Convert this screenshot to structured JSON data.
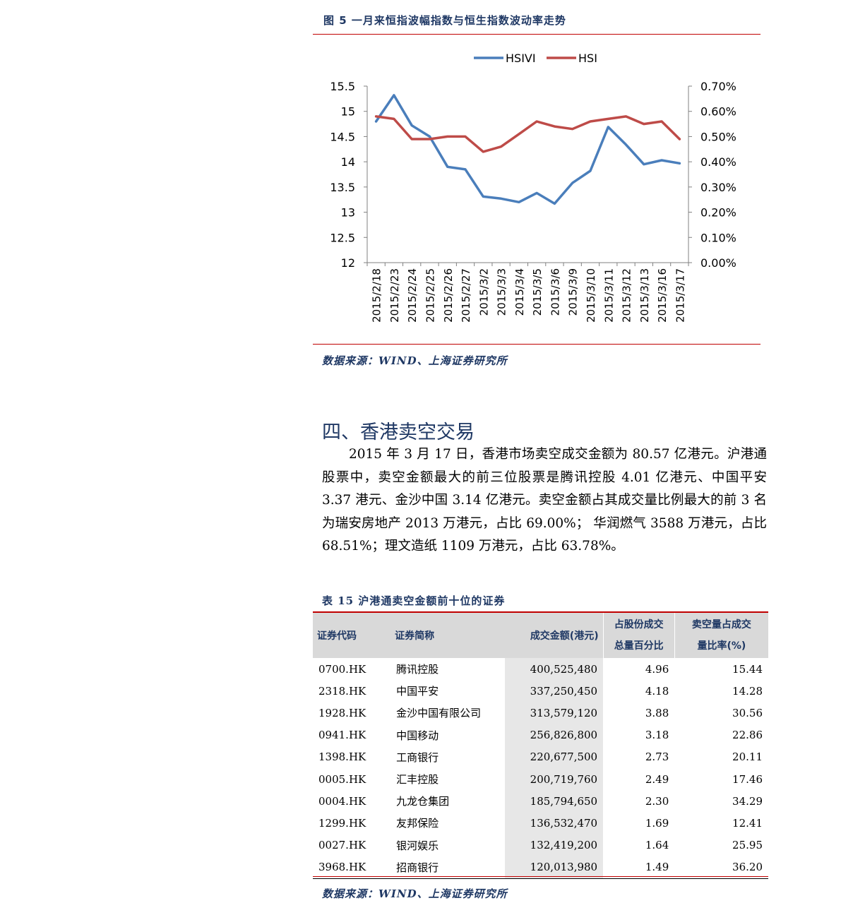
{
  "figure": {
    "title": "图 5  一月来恒指波幅指数与恒生指数波动率走势",
    "source": "数据来源：WIND、上海证券研究所"
  },
  "chart_data": {
    "type": "line",
    "legend_position": "top",
    "x": [
      "2015/2/18",
      "2015/2/23",
      "2015/2/24",
      "2015/2/25",
      "2015/2/26",
      "2015/2/27",
      "2015/3/2",
      "2015/3/3",
      "2015/3/4",
      "2015/3/5",
      "2015/3/6",
      "2015/3/9",
      "2015/3/10",
      "2015/3/11",
      "2015/3/12",
      "2015/3/13",
      "2015/3/16",
      "2015/3/17"
    ],
    "left_axis": {
      "ylim": [
        12,
        15.5
      ],
      "ticks": [
        "15.5",
        "15",
        "14.5",
        "14",
        "13.5",
        "13",
        "12.5",
        "12"
      ]
    },
    "right_axis": {
      "ylim": [
        0,
        0.7
      ],
      "ticks": [
        "0.70%",
        "0.60%",
        "0.50%",
        "0.40%",
        "0.30%",
        "0.20%",
        "0.10%",
        "0.00%"
      ]
    },
    "series": [
      {
        "name": "HSIVI",
        "axis": "left",
        "color": "#4a7ebb",
        "values": [
          14.8,
          15.32,
          14.72,
          14.5,
          13.9,
          13.85,
          13.31,
          13.27,
          13.2,
          13.38,
          13.17,
          13.58,
          13.82,
          14.69,
          14.34,
          13.95,
          14.03,
          13.97
        ]
      },
      {
        "name": "HSI",
        "axis": "right",
        "color": "#be4b48",
        "values": [
          0.58,
          0.57,
          0.49,
          0.49,
          0.5,
          0.5,
          0.44,
          0.46,
          0.51,
          0.56,
          0.54,
          0.53,
          0.56,
          0.57,
          0.58,
          0.55,
          0.56,
          0.49
        ]
      }
    ]
  },
  "section": {
    "heading": "四、香港卖空交易",
    "paragraph": "2015 年 3 月 17 日，香港市场卖空成交金额为 80.57 亿港元。沪港通股票中，卖空金额最大的前三位股票是腾讯控股 4.01 亿港元、中国平安 3.37 港元、金沙中国 3.14 亿港元。卖空金额占其成交量比例最大的前 3 名为瑞安房地产 2013 万港元，占比 69.00%；  华润燃气 3588 万港元，占比 68.51%；理文造纸 1109 万港元，占比 63.78%。"
  },
  "table": {
    "title": "表 15 沪港通卖空金额前十位的证券",
    "headers": {
      "code": "证券代码",
      "name": "证券简称",
      "amount": "成交金额(港元)",
      "pct_line1": "占股份成交",
      "pct_line2": "总量百分比",
      "ratio_line1": "卖空量占成交",
      "ratio_line2": "量比率(%)"
    },
    "rows": [
      {
        "code": "0700.HK",
        "name": "腾讯控股",
        "amount": "400,525,480",
        "pct": "4.96",
        "ratio": "15.44"
      },
      {
        "code": "2318.HK",
        "name": "中国平安",
        "amount": "337,250,450",
        "pct": "4.18",
        "ratio": "14.28"
      },
      {
        "code": "1928.HK",
        "name": "金沙中国有限公司",
        "amount": "313,579,120",
        "pct": "3.88",
        "ratio": "30.56"
      },
      {
        "code": "0941.HK",
        "name": "中国移动",
        "amount": "256,826,800",
        "pct": "3.18",
        "ratio": "22.86"
      },
      {
        "code": "1398.HK",
        "name": "工商银行",
        "amount": "220,677,500",
        "pct": "2.73",
        "ratio": "20.11"
      },
      {
        "code": "0005.HK",
        "name": "汇丰控股",
        "amount": "200,719,760",
        "pct": "2.49",
        "ratio": "17.46"
      },
      {
        "code": "0004.HK",
        "name": "九龙仓集团",
        "amount": "185,794,650",
        "pct": "2.30",
        "ratio": "34.29"
      },
      {
        "code": "1299.HK",
        "name": "友邦保险",
        "amount": "136,532,470",
        "pct": "1.69",
        "ratio": "12.41"
      },
      {
        "code": "0027.HK",
        "name": "银河娱乐",
        "amount": "132,419,200",
        "pct": "1.64",
        "ratio": "25.95"
      },
      {
        "code": "3968.HK",
        "name": "招商银行",
        "amount": "120,013,980",
        "pct": "1.49",
        "ratio": "36.20"
      }
    ],
    "source": "数据来源：WIND、上海证券研究所"
  }
}
